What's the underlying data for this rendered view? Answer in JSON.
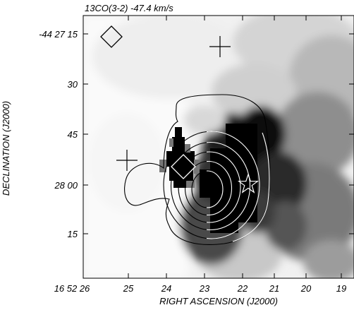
{
  "chart_data": {
    "type": "heatmap",
    "title": "13CO(3-2) -47.4 km/s",
    "xlabel": "RIGHT ASCENSION (J2000)",
    "ylabel": "DECLINATION (J2000)",
    "x_tick_labels": [
      "16 52 26",
      "25",
      "24",
      "23",
      "22",
      "21",
      "20",
      "19"
    ],
    "y_tick_labels": [
      "-44 27 15",
      "30",
      "45",
      "28 00",
      "15"
    ],
    "colormap": "greyscale, black = high emission",
    "contours": {
      "count": 6,
      "colors": [
        "#000000",
        "#ffffff"
      ]
    },
    "markers": [
      {
        "symbol": "diamond",
        "ra_s": 25.5,
        "dec": "-44 27 12"
      },
      {
        "symbol": "plus",
        "ra_s": 22.5,
        "dec": "-44 27 20"
      },
      {
        "symbol": "plus",
        "ra_s": 25.0,
        "dec": "-44 27 53"
      },
      {
        "symbol": "diamond",
        "ra_s": 23.6,
        "dec": "-44 27 57"
      },
      {
        "symbol": "star",
        "ra_s": 21.6,
        "dec": "-44 28 02"
      }
    ],
    "grid": false
  },
  "colors": {
    "frame": "#000000",
    "contour_outer": "#000000",
    "contour_inner": "#ffffff"
  }
}
